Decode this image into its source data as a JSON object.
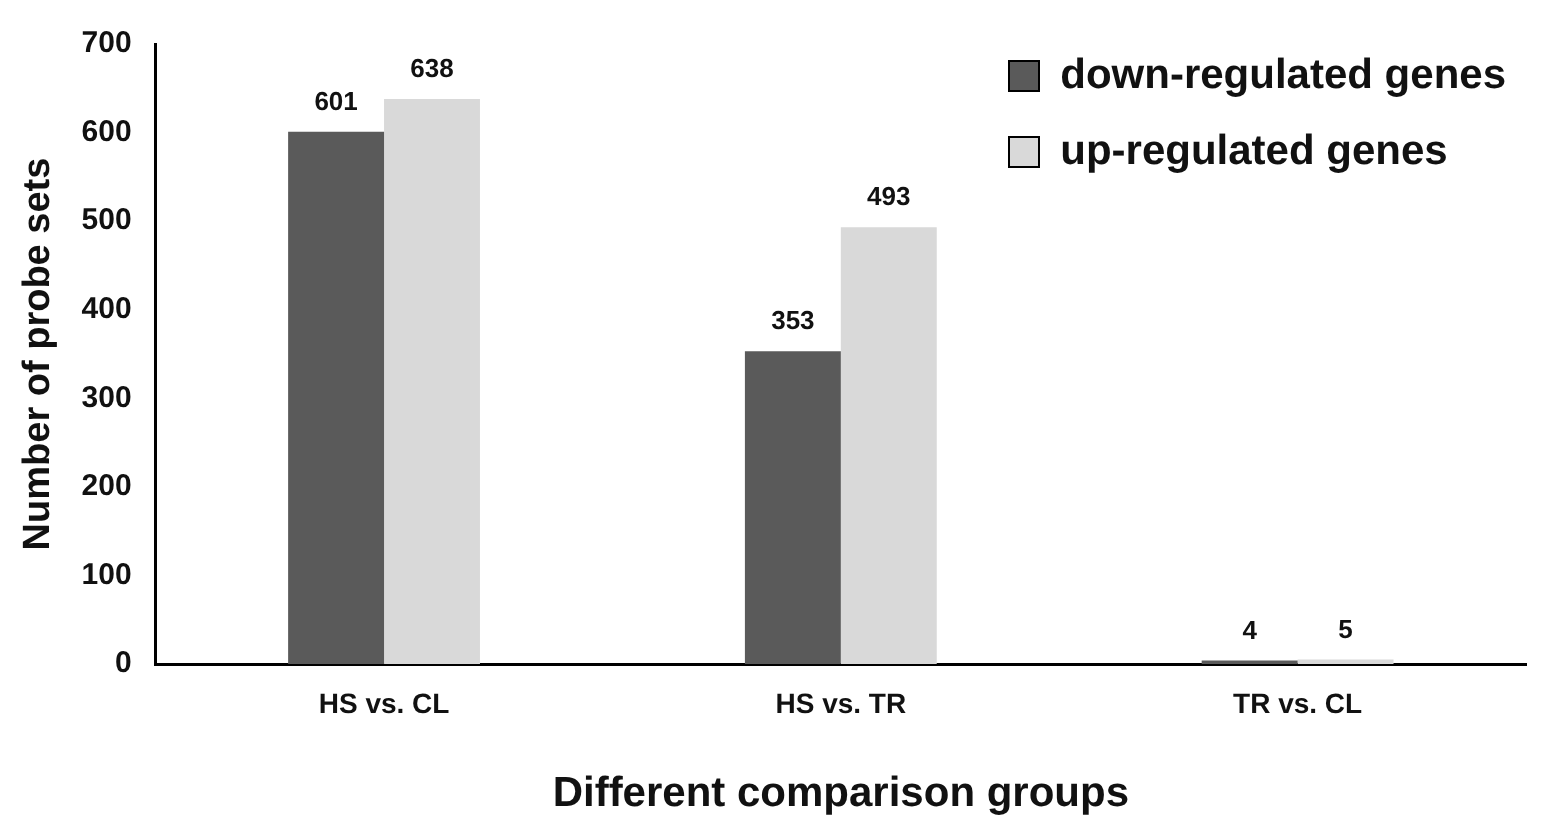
{
  "chart_data": {
    "type": "bar",
    "xlabel": "Different comparison groups",
    "ylabel": "Number of probe sets",
    "categories": [
      "HS vs. CL",
      "HS vs. TR",
      "TR vs. CL"
    ],
    "series": [
      {
        "name": "down-regulated genes",
        "color": "#5a5a5a",
        "values": [
          601,
          353,
          4
        ]
      },
      {
        "name": "up-regulated genes",
        "color": "#d9d9d9",
        "values": [
          638,
          493,
          5
        ]
      }
    ],
    "ylim": [
      0,
      700
    ],
    "yticks": [
      0,
      100,
      200,
      300,
      400,
      500,
      600,
      700
    ],
    "grid": false,
    "legend": "top right",
    "data_labels": true
  }
}
